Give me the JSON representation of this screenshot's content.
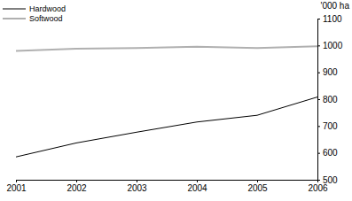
{
  "chart_data": {
    "type": "line",
    "x": [
      2001,
      2002,
      2003,
      2004,
      2005,
      2006
    ],
    "xlim": [
      2001,
      2006
    ],
    "xticks": [
      2001,
      2002,
      2003,
      2004,
      2005,
      2006
    ],
    "ylabel": "'000 ha",
    "ylim": [
      500,
      1100
    ],
    "yticks": [
      500,
      600,
      700,
      800,
      900,
      1000,
      1100
    ],
    "legend": "upper left",
    "series": [
      {
        "name": "Hardwood",
        "color": "#000000",
        "values": [
          585,
          637,
          677,
          715,
          740,
          808
        ]
      },
      {
        "name": "Softwood",
        "color": "#b0b0b0",
        "values": [
          980,
          988,
          990,
          995,
          990,
          997
        ]
      }
    ]
  }
}
